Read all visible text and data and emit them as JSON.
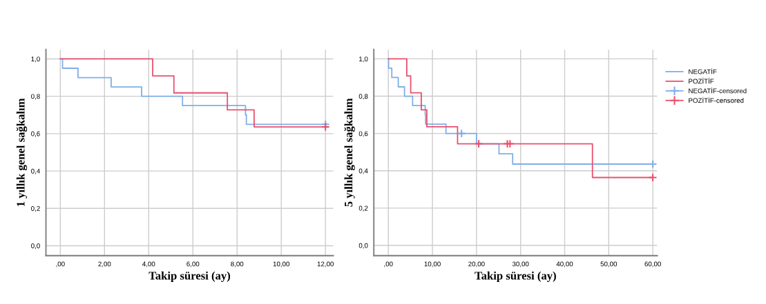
{
  "chart_data": [
    {
      "type": "step",
      "xlabel": "Takip süresi (ay)",
      "ylabel": "1 yıllık genel sağkalım",
      "xlim": [
        -0.65,
        12.35
      ],
      "ylim": [
        -0.053,
        1.05
      ],
      "xticks": [
        {
          "value": 0,
          "label": ",00"
        },
        {
          "value": 2,
          "label": "2,00"
        },
        {
          "value": 4,
          "label": "4,00"
        },
        {
          "value": 6,
          "label": "6,00"
        },
        {
          "value": 8,
          "label": "8,00"
        },
        {
          "value": 10,
          "label": "10,00"
        },
        {
          "value": 12,
          "label": "12,00"
        }
      ],
      "yticks": [
        {
          "value": 0,
          "label": "0,0"
        },
        {
          "value": 0.2,
          "label": "0,2"
        },
        {
          "value": 0.4,
          "label": "0,4"
        },
        {
          "value": 0.6,
          "label": "0,6"
        },
        {
          "value": 0.8,
          "label": "0,8"
        },
        {
          "value": 1.0,
          "label": "1,0"
        }
      ],
      "grid": true,
      "legend": false,
      "series": [
        {
          "color": "#7eaee8",
          "x": [
            0,
            0.1,
            0.8,
            2.3,
            3.68,
            5.53,
            8.38,
            8.42,
            12
          ],
          "values": [
            1.0,
            0.95,
            0.9,
            0.85,
            0.8,
            0.75,
            0.7,
            0.65,
            0.65
          ]
        },
        {
          "color": "#e8506e",
          "x": [
            0,
            4.18,
            5.14,
            7.56,
            8.77,
            12
          ],
          "values": [
            1.0,
            0.909,
            0.818,
            0.727,
            0.636,
            0.636
          ]
        },
        {
          "type": "scatter",
          "marker": "cross",
          "color": "#7eaee8",
          "x": [
            12
          ],
          "values": [
            0.65
          ]
        },
        {
          "type": "scatter",
          "marker": "cross",
          "color": "#e8506e",
          "x": [
            12
          ],
          "values": [
            0.636
          ]
        }
      ]
    },
    {
      "type": "step",
      "xlabel": "Takip süresi (ay)",
      "ylabel": "5 yıllık genel sağkalım",
      "xlim": [
        -3.3,
        61
      ],
      "ylim": [
        -0.055,
        1.05
      ],
      "xticks": [
        {
          "value": 0,
          "label": ",00"
        },
        {
          "value": 10,
          "label": "10,00"
        },
        {
          "value": 20,
          "label": "20,00"
        },
        {
          "value": 30,
          "label": "30,00"
        },
        {
          "value": 40,
          "label": "40,00"
        },
        {
          "value": 50,
          "label": "50,00"
        },
        {
          "value": 60,
          "label": "60,00"
        }
      ],
      "yticks": [
        {
          "value": 0,
          "label": "0,0"
        },
        {
          "value": 0.2,
          "label": "0,2"
        },
        {
          "value": 0.4,
          "label": "0,4"
        },
        {
          "value": 0.6,
          "label": "0,6"
        },
        {
          "value": 0.8,
          "label": "0,8"
        },
        {
          "value": 1.0,
          "label": "1,0"
        }
      ],
      "grid": true,
      "legend": "right",
      "series": [
        {
          "name": "NEGATİF",
          "color": "#7eaee8",
          "x": [
            0,
            0.05,
            0.78,
            2.25,
            3.66,
            5.5,
            8.36,
            8.45,
            13.07,
            20.0,
            25.1,
            28.2,
            60
          ],
          "values": [
            1.0,
            0.95,
            0.9,
            0.85,
            0.8,
            0.75,
            0.7,
            0.65,
            0.6,
            0.545,
            0.491,
            0.436,
            0.436
          ]
        },
        {
          "name": "POZİTİF",
          "color": "#e8506e",
          "x": [
            0,
            4.18,
            5.07,
            7.47,
            8.73,
            15.7,
            46.3,
            60
          ],
          "values": [
            1.0,
            0.909,
            0.818,
            0.727,
            0.636,
            0.545,
            0.364,
            0.364
          ]
        },
        {
          "type": "scatter",
          "name": "NEGATİF-censored",
          "marker": "cross",
          "color": "#7eaee8",
          "x": [
            16.6,
            60
          ],
          "values": [
            0.6,
            0.436
          ]
        },
        {
          "type": "scatter",
          "name": "POZİTİF-censored",
          "marker": "cross",
          "color": "#e8506e",
          "x": [
            20.5,
            27.0,
            27.6,
            60
          ],
          "values": [
            0.545,
            0.545,
            0.545,
            0.364
          ]
        }
      ]
    }
  ]
}
